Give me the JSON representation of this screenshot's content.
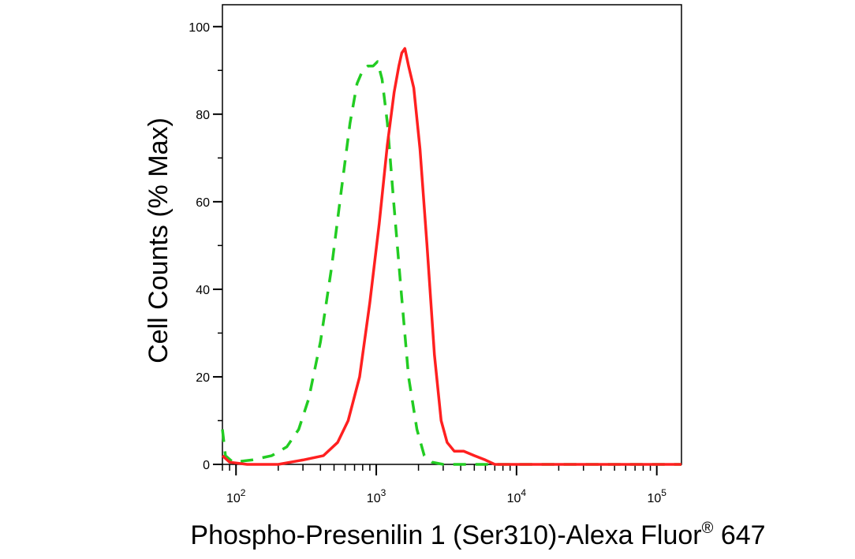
{
  "chart_data": {
    "type": "line",
    "title": "",
    "xlabel": "Phospho-Presenilin 1 (Ser310)-Alexa Fluor",
    "xlabel_superscript": "®",
    "xlabel_suffix": " 647",
    "ylabel": "Cell Counts (% Max)",
    "x_scale": "log",
    "xlim": [
      80,
      150000
    ],
    "ylim": [
      0,
      105
    ],
    "x_ticks": [
      {
        "value": 100,
        "base": "10",
        "exp": "2"
      },
      {
        "value": 1000,
        "base": "10",
        "exp": "3"
      },
      {
        "value": 10000,
        "base": "10",
        "exp": "4"
      },
      {
        "value": 100000,
        "base": "10",
        "exp": "5"
      }
    ],
    "y_ticks": [
      0,
      20,
      40,
      60,
      80,
      100
    ],
    "grid": false,
    "legend": "none",
    "series": [
      {
        "color": "#22cc22",
        "style": "dashed",
        "points": [
          [
            80,
            8
          ],
          [
            84,
            2
          ],
          [
            95,
            0.5
          ],
          [
            130,
            1
          ],
          [
            180,
            2
          ],
          [
            230,
            4
          ],
          [
            280,
            8
          ],
          [
            330,
            15
          ],
          [
            400,
            28
          ],
          [
            480,
            45
          ],
          [
            560,
            62
          ],
          [
            650,
            78
          ],
          [
            730,
            87
          ],
          [
            800,
            90
          ],
          [
            870,
            91
          ],
          [
            950,
            91
          ],
          [
            1020,
            92
          ],
          [
            1100,
            88
          ],
          [
            1200,
            78
          ],
          [
            1330,
            60
          ],
          [
            1500,
            40
          ],
          [
            1700,
            20
          ],
          [
            1950,
            8
          ],
          [
            2200,
            2
          ],
          [
            2500,
            0.5
          ],
          [
            3000,
            0
          ],
          [
            150000,
            0
          ]
        ]
      },
      {
        "color": "#ff2020",
        "style": "solid",
        "points": [
          [
            80,
            2
          ],
          [
            90,
            0.5
          ],
          [
            120,
            0
          ],
          [
            200,
            0
          ],
          [
            300,
            1
          ],
          [
            420,
            2
          ],
          [
            530,
            5
          ],
          [
            630,
            10
          ],
          [
            760,
            20
          ],
          [
            900,
            37
          ],
          [
            1050,
            55
          ],
          [
            1200,
            73
          ],
          [
            1340,
            85
          ],
          [
            1450,
            91
          ],
          [
            1520,
            94
          ],
          [
            1600,
            95
          ],
          [
            1700,
            91
          ],
          [
            1850,
            86
          ],
          [
            2050,
            72
          ],
          [
            2300,
            50
          ],
          [
            2600,
            25
          ],
          [
            2900,
            10
          ],
          [
            3200,
            5
          ],
          [
            3600,
            3
          ],
          [
            4200,
            3
          ],
          [
            5000,
            2
          ],
          [
            6000,
            1
          ],
          [
            7000,
            0
          ],
          [
            150000,
            0
          ]
        ]
      }
    ]
  }
}
